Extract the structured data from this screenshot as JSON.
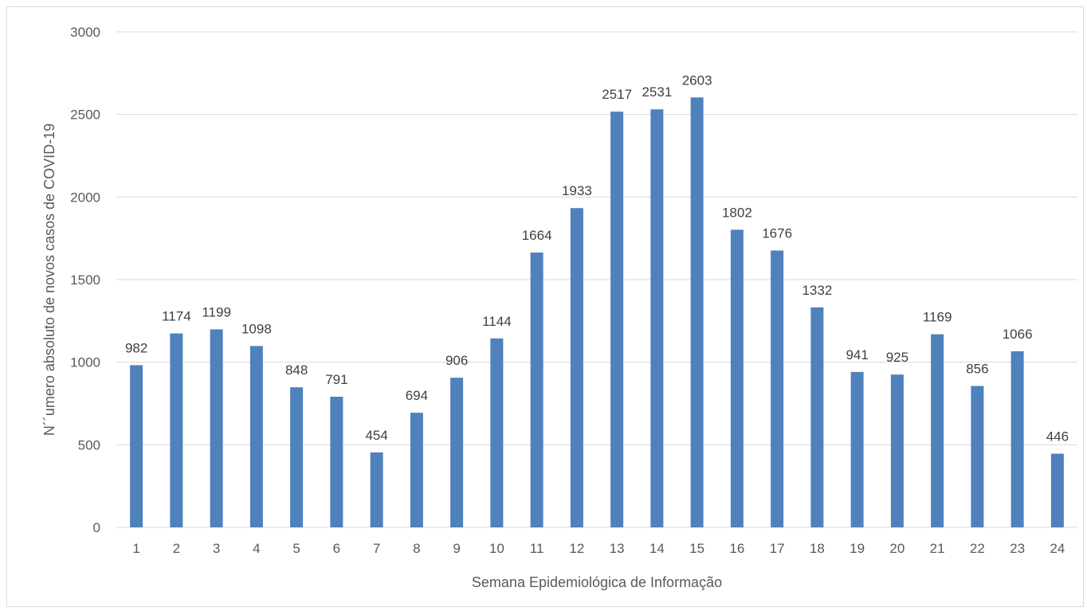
{
  "chart_data": {
    "type": "bar",
    "title": "",
    "xlabel": "Semana Epidemiológica de Informação",
    "ylabel": "N´´umero absoluto de novos casos de COVID-19",
    "categories": [
      "1",
      "2",
      "3",
      "4",
      "5",
      "6",
      "7",
      "8",
      "9",
      "10",
      "11",
      "12",
      "13",
      "14",
      "15",
      "16",
      "17",
      "18",
      "19",
      "20",
      "21",
      "22",
      "23",
      "24"
    ],
    "values": [
      982,
      1174,
      1199,
      1098,
      848,
      791,
      454,
      694,
      906,
      1144,
      1664,
      1933,
      2517,
      2531,
      2603,
      1802,
      1676,
      1332,
      941,
      925,
      1169,
      856,
      1066,
      446
    ],
    "ylim": [
      0,
      3000
    ],
    "yticks": [
      0,
      500,
      1000,
      1500,
      2000,
      2500,
      3000
    ],
    "grid": true,
    "legend": "none",
    "colors": {
      "bar": "#4f81bd",
      "grid": "#d9d9d9"
    }
  }
}
